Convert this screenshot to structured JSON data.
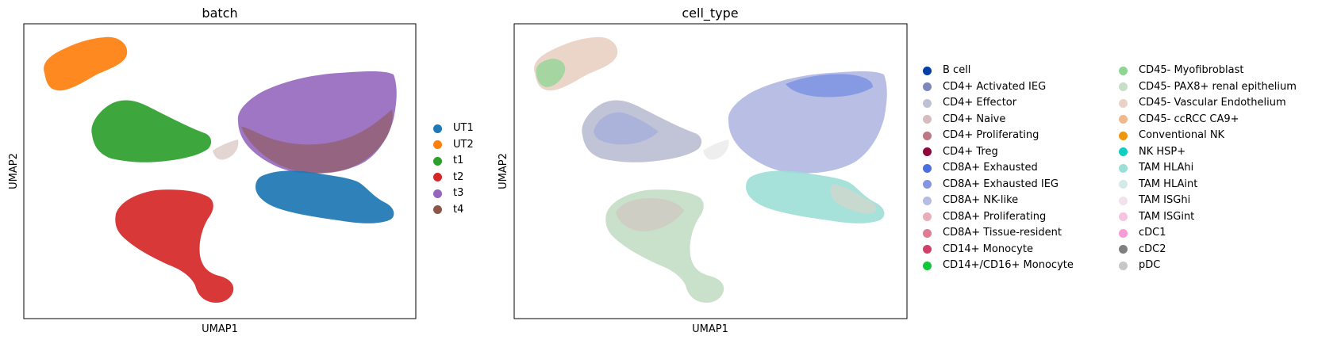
{
  "chart_data": [
    {
      "type": "scatter",
      "title": "batch",
      "xlabel": "UMAP1",
      "ylabel": "UMAP2",
      "grid": false,
      "legend_placement": "right",
      "series": [
        {
          "name": "UT1",
          "color": "#1f77b4"
        },
        {
          "name": "UT2",
          "color": "#ff7f0e"
        },
        {
          "name": "t1",
          "color": "#2ca02c"
        },
        {
          "name": "t2",
          "color": "#d62728"
        },
        {
          "name": "t3",
          "color": "#9467bd"
        },
        {
          "name": "t4",
          "color": "#8c564b"
        }
      ]
    },
    {
      "type": "scatter",
      "title": "cell_type",
      "xlabel": "UMAP1",
      "ylabel": "UMAP2",
      "grid": false,
      "legend_placement": "right, two columns",
      "series": [
        {
          "name": "B cell",
          "color": "#023fa5"
        },
        {
          "name": "CD4+ Activated IEG",
          "color": "#7d87b9"
        },
        {
          "name": "CD4+ Effector",
          "color": "#bec1d4"
        },
        {
          "name": "CD4+ Naive",
          "color": "#d6bcc0"
        },
        {
          "name": "CD4+ Proliferating",
          "color": "#bb7784"
        },
        {
          "name": "CD4+ Treg",
          "color": "#8e063b"
        },
        {
          "name": "CD8A+ Exhausted",
          "color": "#4a6fe3"
        },
        {
          "name": "CD8A+ Exhausted IEG",
          "color": "#8595e1"
        },
        {
          "name": "CD8A+ NK-like",
          "color": "#b5bbe3"
        },
        {
          "name": "CD8A+ Proliferating",
          "color": "#e6afb9"
        },
        {
          "name": "CD8A+ Tissue-resident",
          "color": "#e07b91"
        },
        {
          "name": "CD14+ Monocyte",
          "color": "#d33f6a"
        },
        {
          "name": "CD14+/CD16+ Monocyte",
          "color": "#11c638"
        },
        {
          "name": "CD45- Myofibroblast",
          "color": "#8dd593"
        },
        {
          "name": "CD45- PAX8+ renal epithelium",
          "color": "#c6dec7"
        },
        {
          "name": "CD45- Vascular Endothelium",
          "color": "#ead3c6"
        },
        {
          "name": "CD45- ccRCC CA9+",
          "color": "#f0b98d"
        },
        {
          "name": "Conventional NK",
          "color": "#ef9708"
        },
        {
          "name": "NK HSP+",
          "color": "#0fcfc0"
        },
        {
          "name": "TAM HLAhi",
          "color": "#9cded6"
        },
        {
          "name": "TAM HLAint",
          "color": "#d5eae7"
        },
        {
          "name": "TAM ISGhi",
          "color": "#f3e1eb"
        },
        {
          "name": "TAM ISGint",
          "color": "#f6c4e1"
        },
        {
          "name": "cDC1",
          "color": "#f79cd4"
        },
        {
          "name": "cDC2",
          "color": "#7f7f7f"
        },
        {
          "name": "pDC",
          "color": "#c7c7c7"
        }
      ]
    }
  ]
}
